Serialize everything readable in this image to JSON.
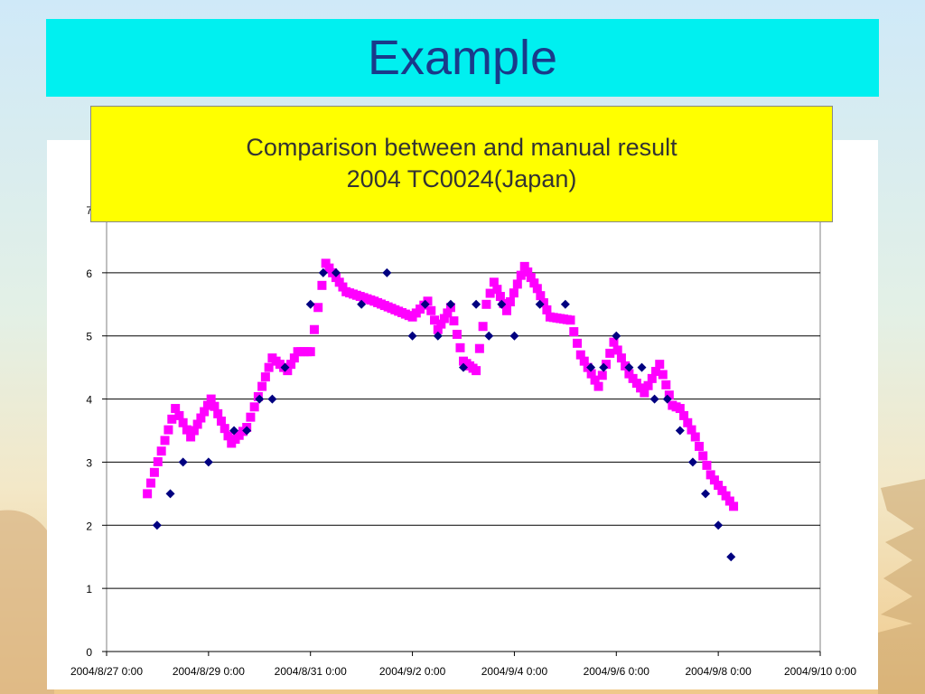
{
  "slide": {
    "title": "Example",
    "caption_line1": "Comparison between and manual result",
    "caption_line2": "2004 TC0024(Japan)"
  },
  "colors": {
    "title_banner": "#00f0f0",
    "title_text": "#1a3a8a",
    "caption_bg": "#ffff00",
    "series_a": "#000080",
    "series_b": "#ff00ff"
  },
  "chart_data": {
    "type": "scatter",
    "title": "",
    "xlabel": "",
    "ylabel": "",
    "x_unit": "days since 2004/8/27 0:00",
    "xlim": [
      0,
      14
    ],
    "ylim": [
      0,
      7
    ],
    "y_ticks": [
      0,
      1,
      2,
      3,
      4,
      5,
      6,
      7
    ],
    "x_tick_labels": [
      "2004/8/27 0:00",
      "2004/8/29 0:00",
      "2004/8/31 0:00",
      "2004/9/2 0:00",
      "2004/9/4 0:00",
      "2004/9/6 0:00",
      "2004/9/8 0:00",
      "2004/9/10 0:00"
    ],
    "grid": "horizontal",
    "legend": "none",
    "series": [
      {
        "marker": "diamond",
        "color": "#000080",
        "points": [
          [
            0.99,
            2.0
          ],
          [
            1.25,
            2.5
          ],
          [
            1.5,
            3.0
          ],
          [
            2.0,
            3.0
          ],
          [
            2.5,
            3.5
          ],
          [
            2.75,
            3.5
          ],
          [
            3.0,
            4.0
          ],
          [
            3.25,
            4.0
          ],
          [
            3.5,
            4.5
          ],
          [
            4.0,
            5.5
          ],
          [
            4.25,
            6.0
          ],
          [
            4.5,
            6.0
          ],
          [
            5.0,
            5.5
          ],
          [
            5.5,
            6.0
          ],
          [
            6.0,
            5.0
          ],
          [
            6.25,
            5.5
          ],
          [
            6.5,
            5.0
          ],
          [
            6.75,
            5.5
          ],
          [
            7.0,
            4.5
          ],
          [
            7.25,
            5.5
          ],
          [
            7.5,
            5.0
          ],
          [
            7.75,
            5.5
          ],
          [
            8.0,
            5.0
          ],
          [
            8.5,
            5.5
          ],
          [
            9.0,
            5.5
          ],
          [
            9.5,
            4.5
          ],
          [
            9.75,
            4.5
          ],
          [
            10.0,
            5.0
          ],
          [
            10.25,
            4.5
          ],
          [
            10.5,
            4.5
          ],
          [
            10.75,
            4.0
          ],
          [
            11.0,
            4.0
          ],
          [
            11.25,
            3.5
          ],
          [
            11.5,
            3.0
          ],
          [
            11.75,
            2.5
          ],
          [
            12.0,
            2.0
          ],
          [
            12.25,
            1.5
          ]
        ]
      },
      {
        "marker": "square",
        "color": "#ff00ff",
        "anchors": [
          [
            0.8,
            2.5
          ],
          [
            1.35,
            3.85
          ],
          [
            1.65,
            3.4
          ],
          [
            2.05,
            4.0
          ],
          [
            2.45,
            3.3
          ],
          [
            2.75,
            3.55
          ],
          [
            3.05,
            4.2
          ],
          [
            3.25,
            4.65
          ],
          [
            3.55,
            4.45
          ],
          [
            3.75,
            4.75
          ],
          [
            4.0,
            4.75
          ],
          [
            4.3,
            6.15
          ],
          [
            4.7,
            5.7
          ],
          [
            5.25,
            5.55
          ],
          [
            6.0,
            5.3
          ],
          [
            6.3,
            5.55
          ],
          [
            6.5,
            5.1
          ],
          [
            6.75,
            5.45
          ],
          [
            7.0,
            4.6
          ],
          [
            7.25,
            4.45
          ],
          [
            7.45,
            5.5
          ],
          [
            7.6,
            5.85
          ],
          [
            7.85,
            5.4
          ],
          [
            8.2,
            6.1
          ],
          [
            8.45,
            5.75
          ],
          [
            8.7,
            5.3
          ],
          [
            9.1,
            5.25
          ],
          [
            9.3,
            4.7
          ],
          [
            9.65,
            4.2
          ],
          [
            9.95,
            4.9
          ],
          [
            10.25,
            4.4
          ],
          [
            10.55,
            4.1
          ],
          [
            10.85,
            4.55
          ],
          [
            11.1,
            3.9
          ],
          [
            11.25,
            3.85
          ],
          [
            11.55,
            3.4
          ],
          [
            11.85,
            2.8
          ],
          [
            12.3,
            2.3
          ]
        ]
      }
    ]
  }
}
